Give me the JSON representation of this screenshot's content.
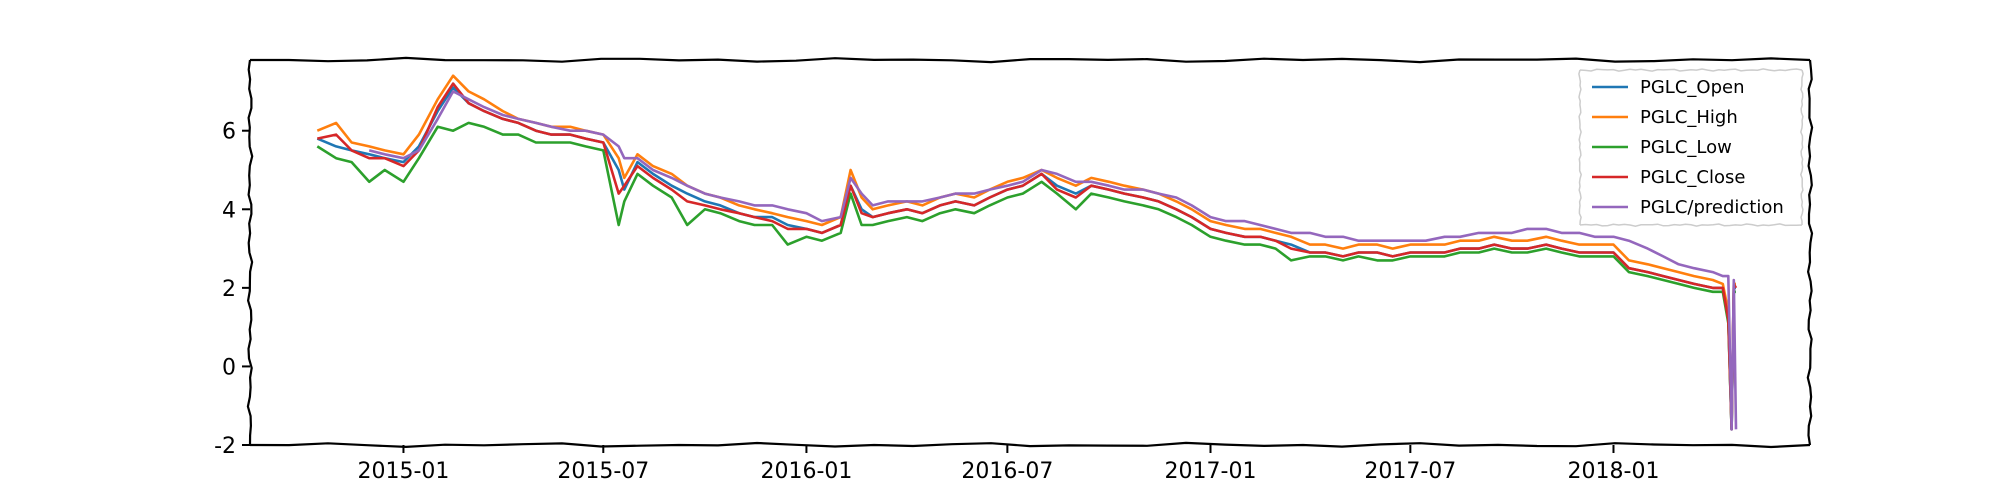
{
  "chart_data": {
    "type": "line",
    "title": "",
    "xlabel": "",
    "ylabel": "",
    "xlim": [
      "2014-08-15",
      "2018-06-28"
    ],
    "ylim": [
      -2,
      7.8
    ],
    "y_ticks": [
      -2,
      0,
      2,
      4,
      6
    ],
    "x_ticks": [
      "2015-01",
      "2015-07",
      "2016-01",
      "2016-07",
      "2017-01",
      "2017-07",
      "2018-01"
    ],
    "grid": false,
    "legend_position": "top-right",
    "series": [
      {
        "name": "PGLC_Open",
        "color": "#1f77b4",
        "x": [
          "2014-10-15",
          "2014-11-01",
          "2014-11-15",
          "2014-12-01",
          "2014-12-15",
          "2015-01-01",
          "2015-01-15",
          "2015-02-01",
          "2015-02-15",
          "2015-03-01",
          "2015-03-15",
          "2015-04-01",
          "2015-04-15",
          "2015-05-01",
          "2015-05-15",
          "2015-06-01",
          "2015-06-15",
          "2015-07-01",
          "2015-07-15",
          "2015-07-20",
          "2015-08-01",
          "2015-08-15",
          "2015-09-01",
          "2015-09-15",
          "2015-10-01",
          "2015-10-15",
          "2015-11-01",
          "2015-11-15",
          "2015-12-01",
          "2015-12-15",
          "2016-01-01",
          "2016-01-15",
          "2016-02-01",
          "2016-02-10",
          "2016-02-20",
          "2016-03-01",
          "2016-03-15",
          "2016-04-01",
          "2016-04-15",
          "2016-05-01",
          "2016-05-15",
          "2016-06-01",
          "2016-06-15",
          "2016-07-01",
          "2016-07-15",
          "2016-08-01",
          "2016-08-15",
          "2016-09-01",
          "2016-09-15",
          "2016-10-01",
          "2016-10-15",
          "2016-11-01",
          "2016-11-15",
          "2016-12-01",
          "2016-12-15",
          "2017-01-01",
          "2017-01-15",
          "2017-02-01",
          "2017-02-15",
          "2017-03-01",
          "2017-03-15",
          "2017-04-01",
          "2017-04-15",
          "2017-05-01",
          "2017-05-15",
          "2017-06-01",
          "2017-06-15",
          "2017-07-01",
          "2017-07-15",
          "2017-08-01",
          "2017-08-15",
          "2017-09-01",
          "2017-09-15",
          "2017-10-01",
          "2017-10-15",
          "2017-11-01",
          "2017-11-15",
          "2017-12-01",
          "2017-12-15",
          "2018-01-01",
          "2018-01-15",
          "2018-02-01",
          "2018-02-15",
          "2018-03-01",
          "2018-03-15",
          "2018-04-01",
          "2018-04-10",
          "2018-04-15",
          "2018-04-18",
          "2018-04-20",
          "2018-04-22"
        ],
        "values": [
          5.8,
          5.6,
          5.5,
          5.4,
          5.3,
          5.2,
          5.6,
          6.5,
          7.1,
          6.7,
          6.5,
          6.3,
          6.2,
          6.0,
          5.9,
          5.9,
          5.8,
          5.7,
          5.0,
          4.5,
          5.2,
          4.9,
          4.6,
          4.4,
          4.2,
          4.1,
          3.9,
          3.8,
          3.8,
          3.6,
          3.5,
          3.4,
          3.6,
          4.6,
          4.0,
          3.8,
          3.9,
          4.0,
          3.9,
          4.1,
          4.2,
          4.1,
          4.3,
          4.5,
          4.6,
          4.9,
          4.6,
          4.4,
          4.6,
          4.5,
          4.4,
          4.3,
          4.2,
          4.0,
          3.8,
          3.5,
          3.4,
          3.3,
          3.3,
          3.2,
          3.1,
          2.9,
          2.9,
          2.8,
          2.9,
          2.9,
          2.8,
          2.9,
          2.9,
          2.9,
          3.0,
          3.0,
          3.1,
          3.0,
          3.0,
          3.1,
          3.0,
          2.9,
          2.9,
          2.9,
          2.5,
          2.4,
          2.3,
          2.2,
          2.1,
          2.0,
          2.0,
          1.2,
          -1.6,
          2.0,
          2.0
        ]
      },
      {
        "name": "PGLC_High",
        "color": "#ff7f0e",
        "x": [
          "2014-10-15",
          "2014-11-01",
          "2014-11-15",
          "2014-12-01",
          "2014-12-15",
          "2015-01-01",
          "2015-01-15",
          "2015-02-01",
          "2015-02-15",
          "2015-03-01",
          "2015-03-15",
          "2015-04-01",
          "2015-04-15",
          "2015-05-01",
          "2015-05-15",
          "2015-06-01",
          "2015-06-15",
          "2015-07-01",
          "2015-07-15",
          "2015-07-20",
          "2015-08-01",
          "2015-08-15",
          "2015-09-01",
          "2015-09-15",
          "2015-10-01",
          "2015-10-15",
          "2015-11-01",
          "2015-11-15",
          "2015-12-01",
          "2015-12-15",
          "2016-01-01",
          "2016-01-15",
          "2016-02-01",
          "2016-02-10",
          "2016-02-20",
          "2016-03-01",
          "2016-03-15",
          "2016-04-01",
          "2016-04-15",
          "2016-05-01",
          "2016-05-15",
          "2016-06-01",
          "2016-06-15",
          "2016-07-01",
          "2016-07-15",
          "2016-08-01",
          "2016-08-15",
          "2016-09-01",
          "2016-09-15",
          "2016-10-01",
          "2016-10-15",
          "2016-11-01",
          "2016-11-15",
          "2016-12-01",
          "2016-12-15",
          "2017-01-01",
          "2017-01-15",
          "2017-02-01",
          "2017-02-15",
          "2017-03-01",
          "2017-03-15",
          "2017-04-01",
          "2017-04-15",
          "2017-05-01",
          "2017-05-15",
          "2017-06-01",
          "2017-06-15",
          "2017-07-01",
          "2017-07-15",
          "2017-08-01",
          "2017-08-15",
          "2017-09-01",
          "2017-09-15",
          "2017-10-01",
          "2017-10-15",
          "2017-11-01",
          "2017-11-15",
          "2017-12-01",
          "2017-12-15",
          "2018-01-01",
          "2018-01-15",
          "2018-02-01",
          "2018-02-15",
          "2018-03-01",
          "2018-03-15",
          "2018-04-01",
          "2018-04-10",
          "2018-04-15",
          "2018-04-18",
          "2018-04-20",
          "2018-04-22"
        ],
        "values": [
          6.0,
          6.2,
          5.7,
          5.6,
          5.5,
          5.4,
          5.9,
          6.8,
          7.4,
          7.0,
          6.8,
          6.5,
          6.3,
          6.2,
          6.1,
          6.1,
          6.0,
          5.9,
          5.3,
          4.8,
          5.4,
          5.1,
          4.9,
          4.6,
          4.4,
          4.3,
          4.1,
          4.0,
          3.9,
          3.8,
          3.7,
          3.6,
          3.8,
          5.0,
          4.3,
          4.0,
          4.1,
          4.2,
          4.1,
          4.3,
          4.4,
          4.3,
          4.5,
          4.7,
          4.8,
          5.0,
          4.8,
          4.6,
          4.8,
          4.7,
          4.6,
          4.5,
          4.4,
          4.2,
          4.0,
          3.7,
          3.6,
          3.5,
          3.5,
          3.4,
          3.3,
          3.1,
          3.1,
          3.0,
          3.1,
          3.1,
          3.0,
          3.1,
          3.1,
          3.1,
          3.2,
          3.2,
          3.3,
          3.2,
          3.2,
          3.3,
          3.2,
          3.1,
          3.1,
          3.1,
          2.7,
          2.6,
          2.5,
          2.4,
          2.3,
          2.2,
          2.1,
          1.4,
          -1.5,
          2.1,
          2.1
        ]
      },
      {
        "name": "PGLC_Low",
        "color": "#2ca02c",
        "x": [
          "2014-10-15",
          "2014-11-01",
          "2014-11-15",
          "2014-12-01",
          "2014-12-15",
          "2015-01-01",
          "2015-01-15",
          "2015-02-01",
          "2015-02-15",
          "2015-03-01",
          "2015-03-15",
          "2015-04-01",
          "2015-04-15",
          "2015-05-01",
          "2015-05-15",
          "2015-06-01",
          "2015-06-15",
          "2015-07-01",
          "2015-07-15",
          "2015-07-20",
          "2015-08-01",
          "2015-08-15",
          "2015-09-01",
          "2015-09-15",
          "2015-10-01",
          "2015-10-15",
          "2015-11-01",
          "2015-11-15",
          "2015-12-01",
          "2015-12-15",
          "2016-01-01",
          "2016-01-15",
          "2016-02-01",
          "2016-02-10",
          "2016-02-20",
          "2016-03-01",
          "2016-03-15",
          "2016-04-01",
          "2016-04-15",
          "2016-05-01",
          "2016-05-15",
          "2016-06-01",
          "2016-06-15",
          "2016-07-01",
          "2016-07-15",
          "2016-08-01",
          "2016-08-15",
          "2016-09-01",
          "2016-09-15",
          "2016-10-01",
          "2016-10-15",
          "2016-11-01",
          "2016-11-15",
          "2016-12-01",
          "2016-12-15",
          "2017-01-01",
          "2017-01-15",
          "2017-02-01",
          "2017-02-15",
          "2017-03-01",
          "2017-03-15",
          "2017-04-01",
          "2017-04-15",
          "2017-05-01",
          "2017-05-15",
          "2017-06-01",
          "2017-06-15",
          "2017-07-01",
          "2017-07-15",
          "2017-08-01",
          "2017-08-15",
          "2017-09-01",
          "2017-09-15",
          "2017-10-01",
          "2017-10-15",
          "2017-11-01",
          "2017-11-15",
          "2017-12-01",
          "2017-12-15",
          "2018-01-01",
          "2018-01-15",
          "2018-02-01",
          "2018-02-15",
          "2018-03-01",
          "2018-03-15",
          "2018-04-01",
          "2018-04-10",
          "2018-04-15",
          "2018-04-18",
          "2018-04-20",
          "2018-04-22"
        ],
        "values": [
          5.6,
          5.3,
          5.2,
          4.7,
          5.0,
          4.7,
          5.3,
          6.1,
          6.0,
          6.2,
          6.1,
          5.9,
          5.9,
          5.7,
          5.7,
          5.7,
          5.6,
          5.5,
          3.6,
          4.2,
          4.9,
          4.6,
          4.3,
          3.6,
          4.0,
          3.9,
          3.7,
          3.6,
          3.6,
          3.1,
          3.3,
          3.2,
          3.4,
          4.4,
          3.6,
          3.6,
          3.7,
          3.8,
          3.7,
          3.9,
          4.0,
          3.9,
          4.1,
          4.3,
          4.4,
          4.7,
          4.4,
          4.0,
          4.4,
          4.3,
          4.2,
          4.1,
          4.0,
          3.8,
          3.6,
          3.3,
          3.2,
          3.1,
          3.1,
          3.0,
          2.7,
          2.8,
          2.8,
          2.7,
          2.8,
          2.7,
          2.7,
          2.8,
          2.8,
          2.8,
          2.9,
          2.9,
          3.0,
          2.9,
          2.9,
          3.0,
          2.9,
          2.8,
          2.8,
          2.8,
          2.4,
          2.3,
          2.2,
          2.1,
          2.0,
          1.9,
          1.9,
          1.1,
          -1.6,
          1.9,
          1.9
        ]
      },
      {
        "name": "PGLC_Close",
        "color": "#d62728",
        "x": [
          "2014-10-15",
          "2014-11-01",
          "2014-11-15",
          "2014-12-01",
          "2014-12-15",
          "2015-01-01",
          "2015-01-15",
          "2015-02-01",
          "2015-02-15",
          "2015-03-01",
          "2015-03-15",
          "2015-04-01",
          "2015-04-15",
          "2015-05-01",
          "2015-05-15",
          "2015-06-01",
          "2015-06-15",
          "2015-07-01",
          "2015-07-15",
          "2015-07-20",
          "2015-08-01",
          "2015-08-15",
          "2015-09-01",
          "2015-09-15",
          "2015-10-01",
          "2015-10-15",
          "2015-11-01",
          "2015-11-15",
          "2015-12-01",
          "2015-12-15",
          "2016-01-01",
          "2016-01-15",
          "2016-02-01",
          "2016-02-10",
          "2016-02-20",
          "2016-03-01",
          "2016-03-15",
          "2016-04-01",
          "2016-04-15",
          "2016-05-01",
          "2016-05-15",
          "2016-06-01",
          "2016-06-15",
          "2016-07-01",
          "2016-07-15",
          "2016-08-01",
          "2016-08-15",
          "2016-09-01",
          "2016-09-15",
          "2016-10-01",
          "2016-10-15",
          "2016-11-01",
          "2016-11-15",
          "2016-12-01",
          "2016-12-15",
          "2017-01-01",
          "2017-01-15",
          "2017-02-01",
          "2017-02-15",
          "2017-03-01",
          "2017-03-15",
          "2017-04-01",
          "2017-04-15",
          "2017-05-01",
          "2017-05-15",
          "2017-06-01",
          "2017-06-15",
          "2017-07-01",
          "2017-07-15",
          "2017-08-01",
          "2017-08-15",
          "2017-09-01",
          "2017-09-15",
          "2017-10-01",
          "2017-10-15",
          "2017-11-01",
          "2017-11-15",
          "2017-12-01",
          "2017-12-15",
          "2018-01-01",
          "2018-01-15",
          "2018-02-01",
          "2018-02-15",
          "2018-03-01",
          "2018-03-15",
          "2018-04-01",
          "2018-04-10",
          "2018-04-15",
          "2018-04-18",
          "2018-04-20",
          "2018-04-22"
        ],
        "values": [
          5.8,
          5.9,
          5.5,
          5.3,
          5.3,
          5.1,
          5.5,
          6.6,
          7.2,
          6.7,
          6.5,
          6.3,
          6.2,
          6.0,
          5.9,
          5.9,
          5.8,
          5.7,
          4.4,
          4.6,
          5.1,
          4.8,
          4.5,
          4.2,
          4.1,
          4.0,
          3.9,
          3.8,
          3.7,
          3.5,
          3.5,
          3.4,
          3.6,
          4.6,
          3.9,
          3.8,
          3.9,
          4.0,
          3.9,
          4.1,
          4.2,
          4.1,
          4.3,
          4.5,
          4.6,
          4.9,
          4.5,
          4.3,
          4.6,
          4.5,
          4.4,
          4.3,
          4.2,
          4.0,
          3.8,
          3.5,
          3.4,
          3.3,
          3.3,
          3.2,
          3.0,
          2.9,
          2.9,
          2.8,
          2.9,
          2.9,
          2.8,
          2.9,
          2.9,
          2.9,
          3.0,
          3.0,
          3.1,
          3.0,
          3.0,
          3.1,
          3.0,
          2.9,
          2.9,
          2.9,
          2.5,
          2.4,
          2.3,
          2.2,
          2.1,
          2.0,
          2.0,
          1.2,
          -1.6,
          2.1,
          2.0
        ]
      },
      {
        "name": "PGLC/prediction",
        "color": "#9467bd",
        "x": [
          "2014-12-01",
          "2014-12-15",
          "2015-01-01",
          "2015-01-15",
          "2015-02-01",
          "2015-02-15",
          "2015-03-01",
          "2015-03-15",
          "2015-04-01",
          "2015-04-15",
          "2015-05-01",
          "2015-05-15",
          "2015-06-01",
          "2015-06-15",
          "2015-07-01",
          "2015-07-15",
          "2015-07-20",
          "2015-08-01",
          "2015-08-15",
          "2015-09-01",
          "2015-09-15",
          "2015-10-01",
          "2015-10-15",
          "2015-11-01",
          "2015-11-15",
          "2015-12-01",
          "2015-12-15",
          "2016-01-01",
          "2016-01-15",
          "2016-02-01",
          "2016-02-10",
          "2016-02-20",
          "2016-03-01",
          "2016-03-15",
          "2016-04-01",
          "2016-04-15",
          "2016-05-01",
          "2016-05-15",
          "2016-06-01",
          "2016-06-15",
          "2016-07-01",
          "2016-07-15",
          "2016-08-01",
          "2016-08-15",
          "2016-09-01",
          "2016-09-15",
          "2016-10-01",
          "2016-10-15",
          "2016-11-01",
          "2016-11-15",
          "2016-12-01",
          "2016-12-15",
          "2017-01-01",
          "2017-01-15",
          "2017-02-01",
          "2017-02-15",
          "2017-03-01",
          "2017-03-15",
          "2017-04-01",
          "2017-04-15",
          "2017-05-01",
          "2017-05-15",
          "2017-06-01",
          "2017-06-15",
          "2017-07-01",
          "2017-07-15",
          "2017-08-01",
          "2017-08-15",
          "2017-09-01",
          "2017-09-15",
          "2017-10-01",
          "2017-10-15",
          "2017-11-01",
          "2017-11-15",
          "2017-12-01",
          "2017-12-15",
          "2018-01-01",
          "2018-01-15",
          "2018-02-01",
          "2018-02-15",
          "2018-03-01",
          "2018-03-15",
          "2018-04-01",
          "2018-04-10",
          "2018-04-15",
          "2018-04-18",
          "2018-04-20",
          "2018-04-22"
        ],
        "values": [
          5.5,
          5.4,
          5.3,
          5.5,
          6.3,
          7.0,
          6.8,
          6.6,
          6.4,
          6.3,
          6.2,
          6.1,
          6.0,
          6.0,
          5.9,
          5.6,
          5.3,
          5.3,
          5.0,
          4.8,
          4.6,
          4.4,
          4.3,
          4.2,
          4.1,
          4.1,
          4.0,
          3.9,
          3.7,
          3.8,
          4.8,
          4.4,
          4.1,
          4.2,
          4.2,
          4.2,
          4.3,
          4.4,
          4.4,
          4.5,
          4.6,
          4.7,
          5.0,
          4.9,
          4.7,
          4.7,
          4.6,
          4.5,
          4.5,
          4.4,
          4.3,
          4.1,
          3.8,
          3.7,
          3.7,
          3.6,
          3.5,
          3.4,
          3.4,
          3.3,
          3.3,
          3.2,
          3.2,
          3.2,
          3.2,
          3.2,
          3.3,
          3.3,
          3.4,
          3.4,
          3.4,
          3.5,
          3.5,
          3.4,
          3.4,
          3.3,
          3.3,
          3.2,
          3.0,
          2.8,
          2.6,
          2.5,
          2.4,
          2.3,
          2.3,
          -1.6,
          2.2,
          -1.6
        ]
      }
    ]
  }
}
